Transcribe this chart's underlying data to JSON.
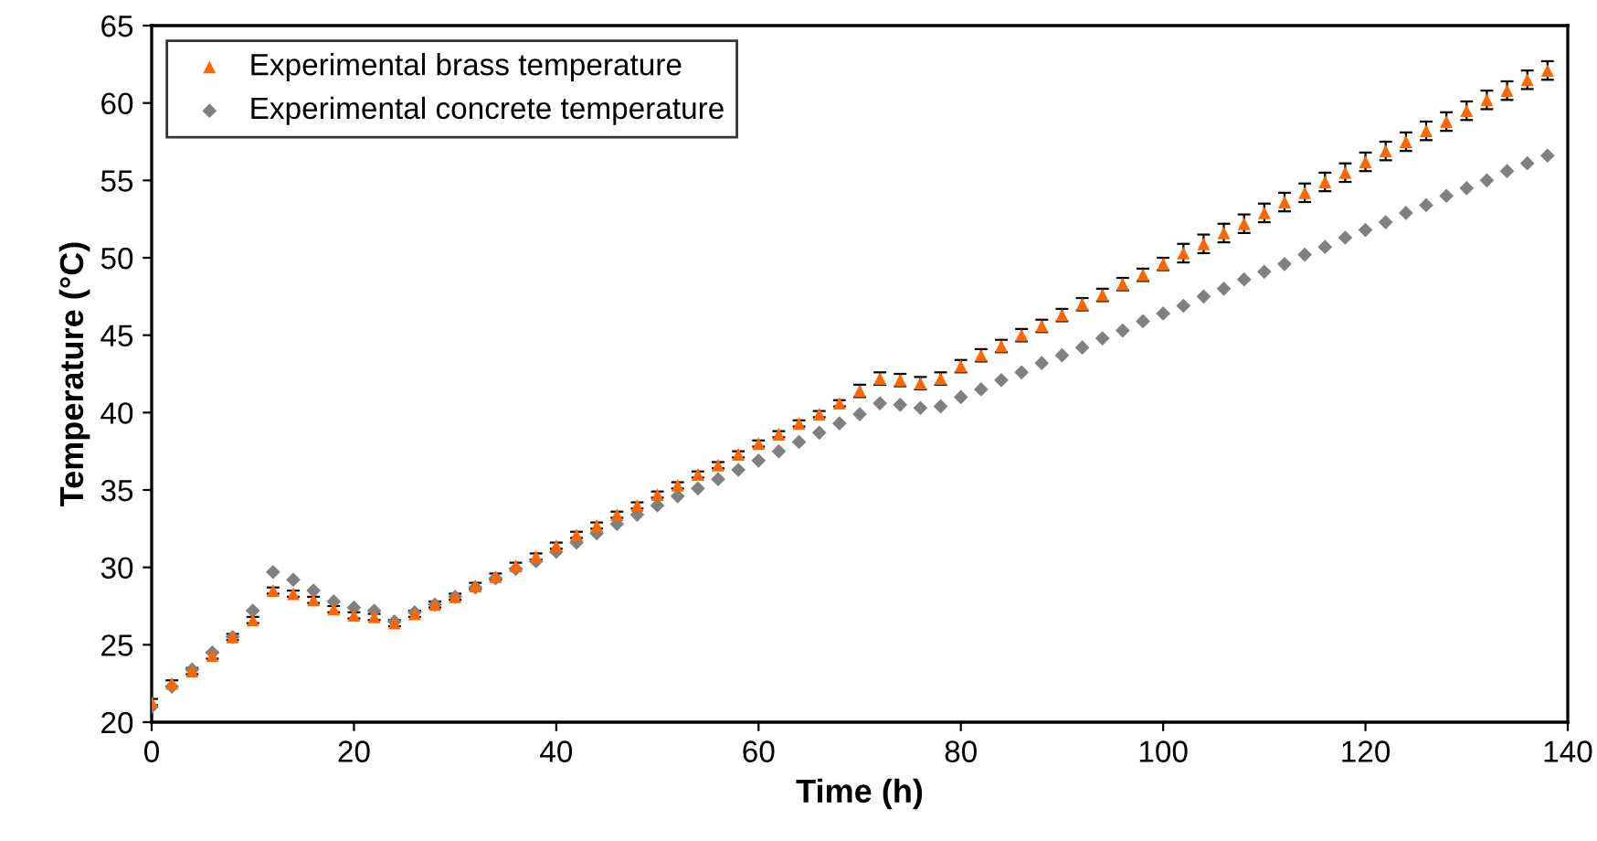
{
  "chart_data": {
    "type": "scatter",
    "xlabel": "Time (h)",
    "ylabel": "Temperature (°C)",
    "xlim": [
      0,
      140
    ],
    "ylim": [
      20,
      65
    ],
    "xticks": [
      0,
      20,
      40,
      60,
      80,
      100,
      120,
      140
    ],
    "yticks": [
      20,
      25,
      30,
      35,
      40,
      45,
      50,
      55,
      60,
      65
    ],
    "grid": false,
    "legend": "top left",
    "x": [
      0,
      2,
      4,
      6,
      8,
      10,
      12,
      14,
      16,
      18,
      20,
      22,
      24,
      26,
      28,
      30,
      32,
      34,
      36,
      38,
      40,
      42,
      44,
      46,
      48,
      50,
      52,
      54,
      56,
      58,
      60,
      62,
      64,
      66,
      68,
      70,
      72,
      74,
      76,
      78,
      80,
      82,
      84,
      86,
      88,
      90,
      92,
      94,
      96,
      98,
      100,
      102,
      104,
      106,
      108,
      110,
      112,
      114,
      116,
      118,
      120,
      122,
      124,
      126,
      128,
      130,
      132,
      134,
      136,
      138
    ],
    "series": [
      {
        "name": "Experimental brass temperature",
        "color": "#ff6600",
        "marker": "triangle",
        "values": [
          21.3,
          22.5,
          23.3,
          24.3,
          25.5,
          26.6,
          28.5,
          28.3,
          27.9,
          27.3,
          26.9,
          26.8,
          26.4,
          27.0,
          27.6,
          28.1,
          28.8,
          29.4,
          30.1,
          30.7,
          31.4,
          32.1,
          32.7,
          33.4,
          34.0,
          34.7,
          35.3,
          36.0,
          36.6,
          37.3,
          38.0,
          38.6,
          39.3,
          39.9,
          40.6,
          41.4,
          42.2,
          42.1,
          41.9,
          42.2,
          43.0,
          43.7,
          44.3,
          45.0,
          45.6,
          46.3,
          47.0,
          47.6,
          48.3,
          48.9,
          49.6,
          50.3,
          50.9,
          51.6,
          52.2,
          52.9,
          53.6,
          54.2,
          54.9,
          55.5,
          56.2,
          56.9,
          57.5,
          58.2,
          58.8,
          59.5,
          60.2,
          60.8,
          61.5,
          62.1
        ],
        "errors": [
          0.2,
          0.2,
          0.2,
          0.2,
          0.2,
          0.2,
          0.2,
          0.2,
          0.2,
          0.2,
          0.2,
          0.2,
          0.2,
          0.2,
          0.2,
          0.2,
          0.2,
          0.2,
          0.2,
          0.2,
          0.2,
          0.2,
          0.2,
          0.2,
          0.2,
          0.2,
          0.2,
          0.2,
          0.2,
          0.2,
          0.2,
          0.2,
          0.2,
          0.2,
          0.2,
          0.4,
          0.4,
          0.4,
          0.4,
          0.4,
          0.4,
          0.4,
          0.4,
          0.4,
          0.4,
          0.4,
          0.4,
          0.4,
          0.4,
          0.4,
          0.4,
          0.6,
          0.6,
          0.6,
          0.6,
          0.6,
          0.6,
          0.6,
          0.6,
          0.6,
          0.6,
          0.6,
          0.6,
          0.6,
          0.6,
          0.6,
          0.6,
          0.6,
          0.6,
          0.6
        ]
      },
      {
        "name": "Experimental concrete temperature",
        "color": "#808080",
        "marker": "diamond",
        "values": [
          21.0,
          22.3,
          23.4,
          24.5,
          25.5,
          27.2,
          29.7,
          29.2,
          28.5,
          27.8,
          27.4,
          27.2,
          26.5,
          27.1,
          27.6,
          28.1,
          28.7,
          29.3,
          29.9,
          30.4,
          31.0,
          31.6,
          32.2,
          32.8,
          33.4,
          34.0,
          34.6,
          35.1,
          35.7,
          36.3,
          36.9,
          37.5,
          38.1,
          38.7,
          39.3,
          39.9,
          40.6,
          40.5,
          40.3,
          40.4,
          41.0,
          41.5,
          42.1,
          42.6,
          43.2,
          43.7,
          44.2,
          44.8,
          45.3,
          45.9,
          46.4,
          46.9,
          47.5,
          48.0,
          48.6,
          49.1,
          49.6,
          50.2,
          50.7,
          51.3,
          51.8,
          52.3,
          52.9,
          53.4,
          54.0,
          54.5,
          55.0,
          55.6,
          56.1,
          56.6
        ]
      }
    ]
  }
}
